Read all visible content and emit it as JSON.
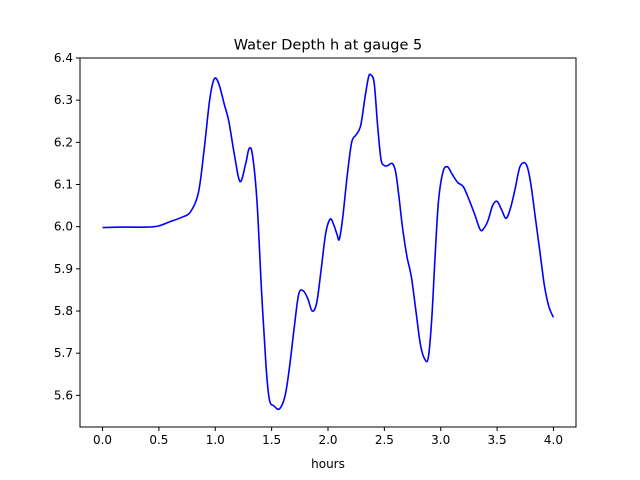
{
  "chart_data": {
    "type": "line",
    "title": "Water Depth h at gauge 5",
    "xlabel": "hours",
    "ylabel": "",
    "xlim": [
      -0.2,
      4.2
    ],
    "ylim": [
      5.525,
      6.4
    ],
    "xticks": [
      0.0,
      0.5,
      1.0,
      1.5,
      2.0,
      2.5,
      3.0,
      3.5,
      4.0
    ],
    "xtick_labels": [
      "0.0",
      "0.5",
      "1.0",
      "1.5",
      "2.0",
      "2.5",
      "3.0",
      "3.5",
      "4.0"
    ],
    "yticks": [
      5.6,
      5.7,
      5.8,
      5.9,
      6.0,
      6.1,
      6.2,
      6.3,
      6.4
    ],
    "ytick_labels": [
      "5.6",
      "5.7",
      "5.8",
      "5.9",
      "6.0",
      "6.1",
      "6.2",
      "6.3",
      "6.4"
    ],
    "grid": false,
    "series": [
      {
        "color": "#0000ff",
        "x": [
          0.0,
          0.2,
          0.4,
          0.5,
          0.6,
          0.7,
          0.78,
          0.85,
          0.9,
          0.95,
          0.99,
          1.03,
          1.08,
          1.12,
          1.17,
          1.22,
          1.27,
          1.3,
          1.33,
          1.37,
          1.41,
          1.45,
          1.48,
          1.52,
          1.57,
          1.62,
          1.66,
          1.7,
          1.74,
          1.78,
          1.82,
          1.86,
          1.9,
          1.94,
          1.98,
          2.02,
          2.05,
          2.08,
          2.1,
          2.13,
          2.17,
          2.21,
          2.25,
          2.29,
          2.33,
          2.36,
          2.38,
          2.41,
          2.44,
          2.47,
          2.5,
          2.53,
          2.57,
          2.6,
          2.63,
          2.66,
          2.7,
          2.74,
          2.78,
          2.82,
          2.86,
          2.89,
          2.92,
          2.95,
          2.98,
          3.02,
          3.06,
          3.1,
          3.15,
          3.2,
          3.25,
          3.3,
          3.35,
          3.38,
          3.42,
          3.46,
          3.5,
          3.54,
          3.58,
          3.62,
          3.66,
          3.7,
          3.74,
          3.77,
          3.8,
          3.84,
          3.88,
          3.92,
          3.96,
          4.0
        ],
        "y": [
          5.998,
          5.999,
          5.999,
          6.002,
          6.012,
          6.022,
          6.035,
          6.08,
          6.18,
          6.3,
          6.35,
          6.34,
          6.29,
          6.25,
          6.17,
          6.107,
          6.15,
          6.185,
          6.17,
          6.06,
          5.85,
          5.67,
          5.59,
          5.575,
          5.568,
          5.6,
          5.67,
          5.76,
          5.84,
          5.848,
          5.83,
          5.8,
          5.82,
          5.9,
          5.985,
          6.018,
          6.005,
          5.982,
          5.97,
          6.02,
          6.12,
          6.2,
          6.218,
          6.24,
          6.31,
          6.355,
          6.36,
          6.34,
          6.24,
          6.16,
          6.145,
          6.145,
          6.15,
          6.13,
          6.07,
          6.0,
          5.93,
          5.88,
          5.8,
          5.72,
          5.685,
          5.69,
          5.78,
          5.93,
          6.06,
          6.13,
          6.142,
          6.125,
          6.105,
          6.095,
          6.065,
          6.03,
          5.993,
          5.995,
          6.015,
          6.05,
          6.06,
          6.04,
          6.02,
          6.045,
          6.09,
          6.14,
          6.152,
          6.14,
          6.1,
          6.02,
          5.94,
          5.86,
          5.81,
          5.785
        ]
      }
    ]
  }
}
